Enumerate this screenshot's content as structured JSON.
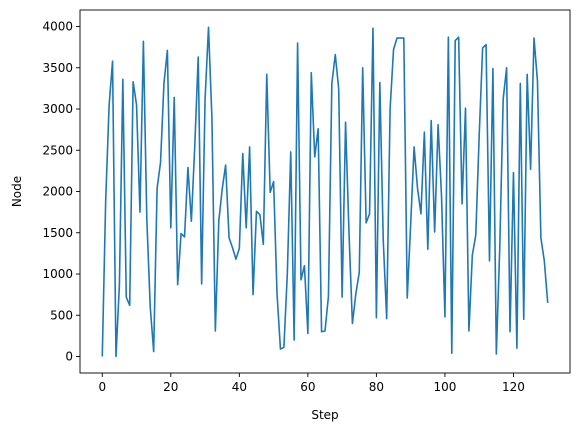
{
  "chart_data": {
    "type": "line",
    "title": "",
    "xlabel": "Step",
    "ylabel": "Node",
    "xlim": [
      -6.5,
      136.5
    ],
    "ylim": [
      -200,
      4200
    ],
    "xticks": [
      0,
      20,
      40,
      60,
      80,
      100,
      120
    ],
    "yticks": [
      0,
      500,
      1000,
      1500,
      2000,
      2500,
      3000,
      3500,
      4000
    ],
    "grid": false,
    "line_color": "#1f77b4",
    "series": [
      {
        "values": [
          0,
          1900,
          3050,
          3580,
          0,
          870,
          3360,
          720,
          620,
          3330,
          3050,
          1750,
          3820,
          1660,
          600,
          60,
          2040,
          2350,
          3310,
          3710,
          1560,
          3140,
          870,
          1490,
          1450,
          2290,
          1640,
          2560,
          3630,
          880,
          3120,
          3990,
          2890,
          310,
          1640,
          2030,
          2320,
          1440,
          1320,
          1180,
          1310,
          2460,
          1560,
          2540,
          750,
          1760,
          1720,
          1360,
          3420,
          1990,
          2120,
          760,
          90,
          110,
          1000,
          2480,
          200,
          3800,
          930,
          1100,
          280,
          3440,
          2420,
          2760,
          300,
          310,
          730,
          3310,
          3660,
          3240,
          720,
          2840,
          1500,
          400,
          760,
          1020,
          3500,
          1620,
          1730,
          3980,
          470,
          3320,
          1410,
          460,
          3000,
          3720,
          3860,
          3860,
          3860,
          710,
          1600,
          2540,
          2040,
          1730,
          2720,
          1300,
          2860,
          1510,
          2810,
          1950,
          480,
          3870,
          40,
          3830,
          3870,
          1850,
          3010,
          310,
          1230,
          1470,
          2680,
          3740,
          3780,
          1160,
          3490,
          30,
          1320,
          3120,
          3500,
          300,
          2230,
          100,
          3310,
          450,
          3420,
          2270,
          3860,
          3340,
          1440,
          1160,
          650
        ]
      }
    ]
  }
}
